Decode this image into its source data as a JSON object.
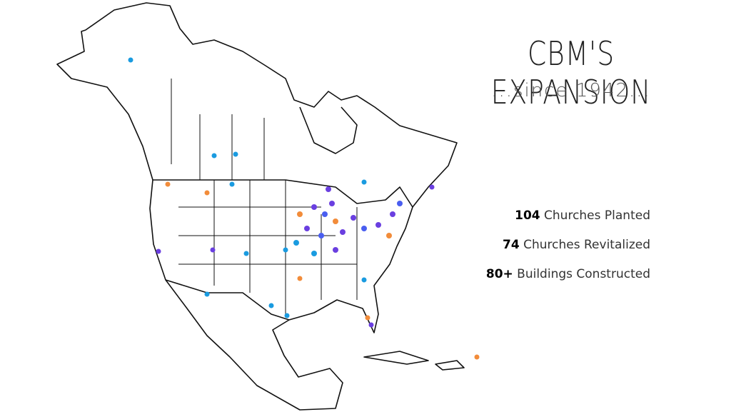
{
  "title": "CBM'S EXPANSION",
  "subtitle": "...since 1942...",
  "stats": [
    {
      "number": "104",
      "label": "Churches Planted"
    },
    {
      "number": "74",
      "label": "Churches Revitalized"
    },
    {
      "number": "80+",
      "label": "Buildings Constructed"
    }
  ]
}
